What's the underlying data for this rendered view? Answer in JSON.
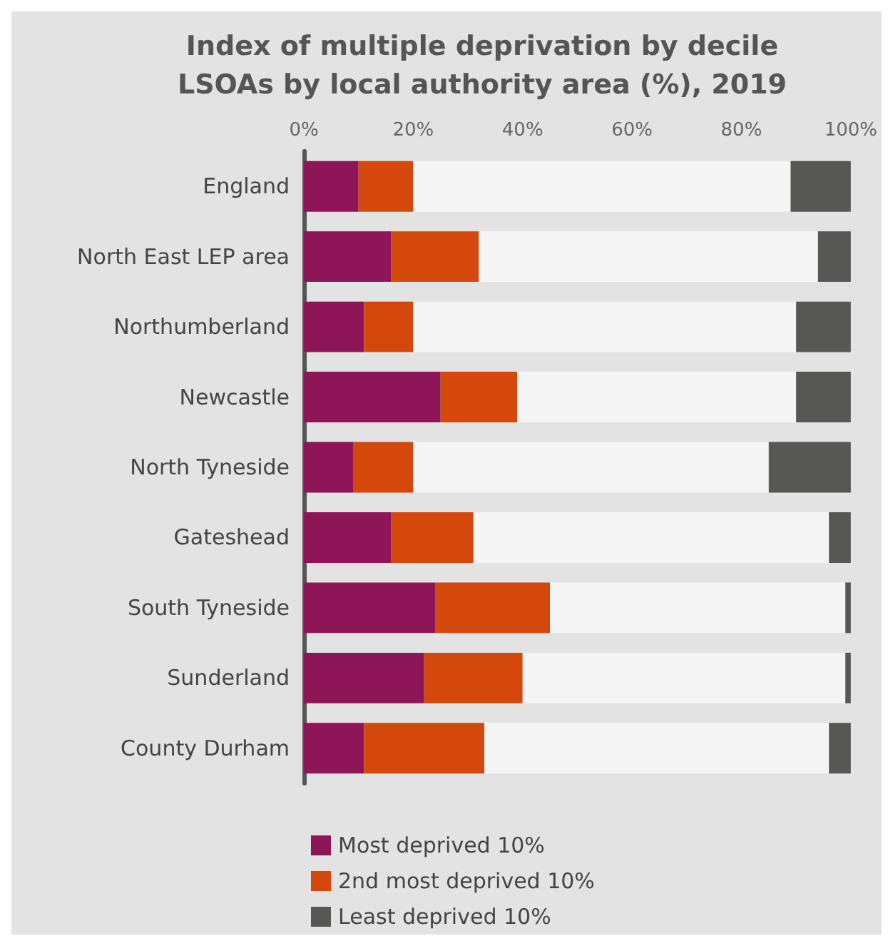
{
  "chart_data": {
    "type": "bar",
    "orientation": "horizontal",
    "stacked": true,
    "title": "Index of multiple deprivation by decile\nLSOAs by local authority area (%), 2019",
    "categories": [
      "England",
      "North East LEP area",
      "Northumberland",
      "Newcastle",
      "North Tyneside",
      "Gateshead",
      "South Tyneside",
      "Sunderland",
      "County Durham"
    ],
    "series": [
      {
        "name": "Most deprived 10%",
        "color": "#8e1558",
        "values": [
          10,
          16,
          11,
          25,
          9,
          16,
          24,
          22,
          11
        ]
      },
      {
        "name": "2nd most deprived 10%",
        "color": "#d4490b",
        "values": [
          10,
          16,
          9,
          14,
          11,
          15,
          21,
          18,
          22
        ]
      },
      {
        "color": "#f5f5f5",
        "values": [
          69,
          62,
          70,
          51,
          65,
          65,
          54,
          59,
          63
        ]
      },
      {
        "name": "Least deprived 10%",
        "color": "#575755",
        "values": [
          11,
          6,
          10,
          10,
          15,
          4,
          1,
          1,
          4
        ]
      }
    ],
    "xlim": [
      0,
      100
    ],
    "xticks": [
      {
        "value": 0,
        "label": "0%"
      },
      {
        "value": 20,
        "label": "20%"
      },
      {
        "value": 40,
        "label": "40%"
      },
      {
        "value": 60,
        "label": "60%"
      },
      {
        "value": 80,
        "label": "80%"
      },
      {
        "value": 100,
        "label": "100%"
      }
    ],
    "grid": false,
    "legend": "bottom"
  }
}
